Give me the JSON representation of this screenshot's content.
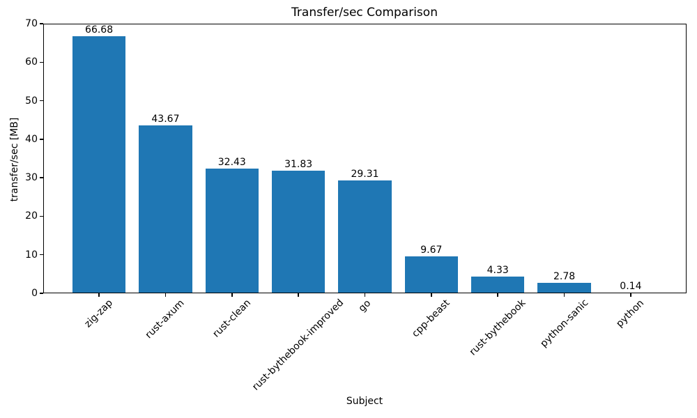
{
  "chart_data": {
    "type": "bar",
    "title": "Transfer/sec Comparison",
    "xlabel": "Subject",
    "ylabel": "transfer/sec [MB]",
    "categories": [
      "zig-zap",
      "rust-axum",
      "rust-clean",
      "rust-bythebook-improved",
      "go",
      "cpp-beast",
      "rust-bythebook",
      "python-sanic",
      "python"
    ],
    "values": [
      66.68,
      43.67,
      32.43,
      31.83,
      29.31,
      9.67,
      4.33,
      2.78,
      0.14
    ],
    "bar_labels": [
      "66.68",
      "43.67",
      "32.43",
      "31.83",
      "29.31",
      "9.67",
      "4.33",
      "2.78",
      "0.14"
    ],
    "ylim": [
      0,
      70
    ],
    "yticks": [
      0,
      10,
      20,
      30,
      40,
      50,
      60,
      70
    ],
    "bar_color": "#1f77b4",
    "axis_color": "#000000",
    "text_color": "#000000",
    "background": "#ffffff",
    "grid": false,
    "legend_position": "none",
    "x_tick_rotation_deg": 45
  }
}
